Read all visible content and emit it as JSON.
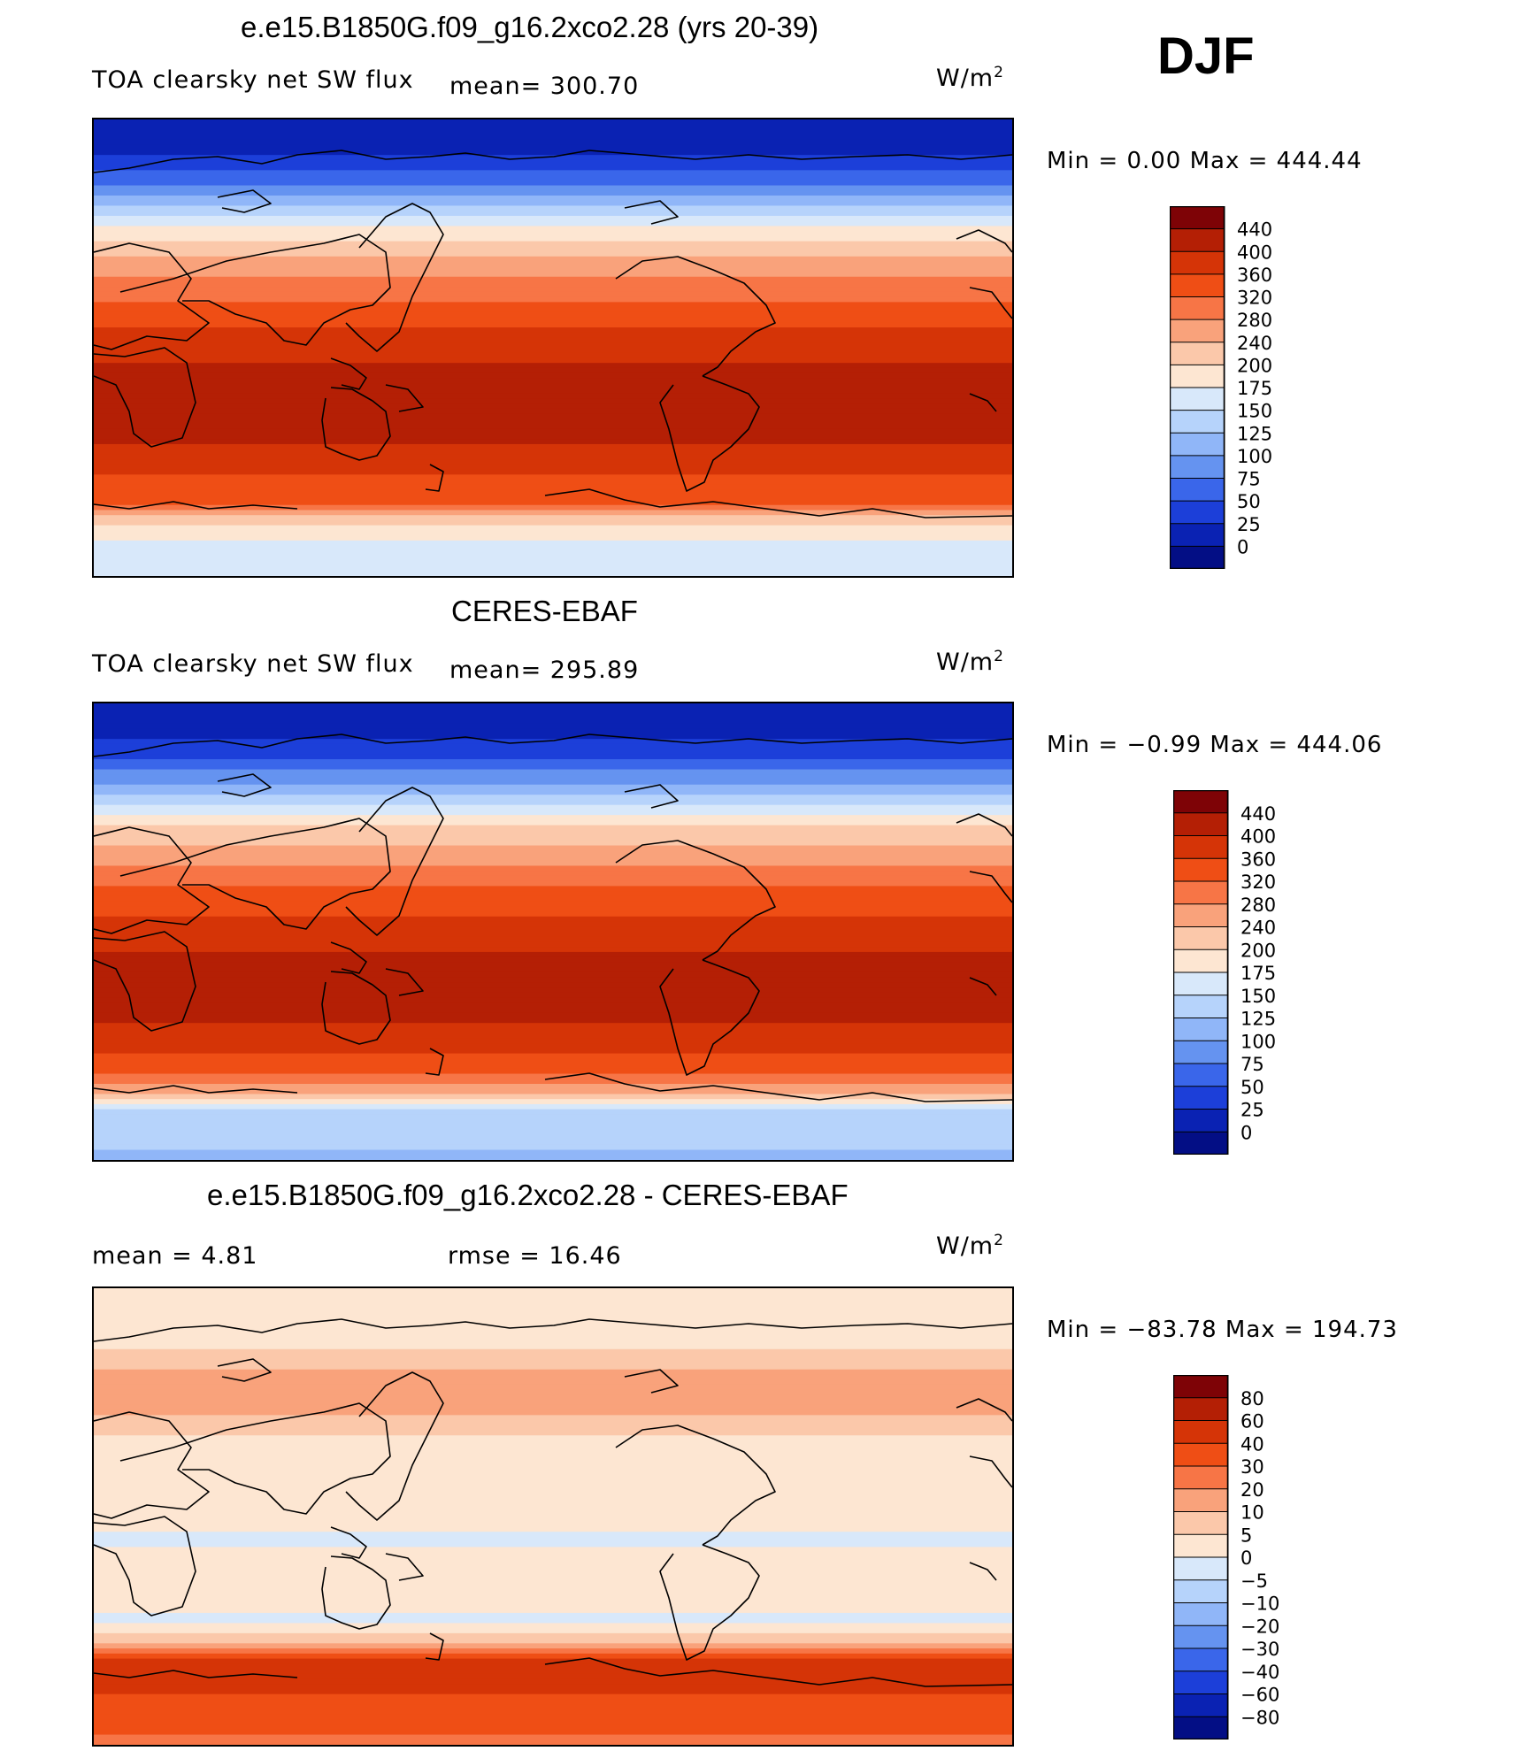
{
  "season": "DJF",
  "units_main": "W/m",
  "units_sup": "2",
  "panels": [
    {
      "title": "e.e15.B1850G.f09_g16.2xco2.28 (yrs 20-39)",
      "left_label": "TOA clearsky net SW flux",
      "center_label": "mean=  300.70",
      "minmax": "Min =    0.00  Max = 444.44"
    },
    {
      "title": "CERES-EBAF",
      "left_label": "TOA clearsky net SW flux",
      "center_label": "mean=  295.89",
      "minmax": "Min =  −0.99  Max = 444.06"
    },
    {
      "title": "e.e15.B1850G.f09_g16.2xco2.28 - CERES-EBAF",
      "left_label": "mean =    4.81",
      "center_label": "rmse =   16.46",
      "minmax": "Min = −83.78  Max = 194.73"
    }
  ],
  "chart_data": [
    {
      "type": "heatmap",
      "title": "e.e15.B1850G.f09_g16.2xco2.28 (yrs 20-39)",
      "variable": "TOA clearsky net SW flux",
      "mean": 300.7,
      "min": 0.0,
      "max": 444.44,
      "units": "W/m2",
      "zonal_profile": {
        "lat": [
          90,
          80,
          70,
          60,
          50,
          40,
          30,
          20,
          10,
          0,
          -10,
          -20,
          -30,
          -40,
          -50,
          -60,
          -70,
          -80,
          -90
        ],
        "values": [
          0,
          15,
          45,
          95,
          160,
          215,
          270,
          315,
          355,
          385,
          410,
          430,
          425,
          395,
          360,
          345,
          190,
          165,
          160
        ]
      },
      "colorbar": {
        "levels": [
          "440",
          "400",
          "360",
          "320",
          "280",
          "240",
          "200",
          "175",
          "150",
          "125",
          "100",
          "75",
          "50",
          "25",
          "0"
        ],
        "colors": [
          "#7e0306",
          "#b41f05",
          "#d53407",
          "#ef4e15",
          "#f77546",
          "#f9a27b",
          "#fbc8aa",
          "#fde6d2",
          "#d8e8fa",
          "#b6d3fb",
          "#90b6f8",
          "#6593f0",
          "#3a66ea",
          "#1c3fd9",
          "#0a22b3",
          "#030e85"
        ]
      }
    },
    {
      "type": "heatmap",
      "title": "CERES-EBAF",
      "variable": "TOA clearsky net SW flux",
      "mean": 295.89,
      "min": -0.99,
      "max": 444.06,
      "units": "W/m2",
      "zonal_profile": {
        "lat": [
          90,
          80,
          70,
          60,
          50,
          40,
          30,
          20,
          10,
          0,
          -10,
          -20,
          -30,
          -40,
          -50,
          -60,
          -70,
          -80,
          -90
        ],
        "values": [
          0,
          10,
          40,
          90,
          155,
          210,
          265,
          310,
          350,
          380,
          405,
          428,
          420,
          390,
          350,
          290,
          150,
          130,
          120
        ]
      },
      "colorbar": {
        "levels": [
          "440",
          "400",
          "360",
          "320",
          "280",
          "240",
          "200",
          "175",
          "150",
          "125",
          "100",
          "75",
          "50",
          "25",
          "0"
        ],
        "colors": [
          "#7e0306",
          "#b41f05",
          "#d53407",
          "#ef4e15",
          "#f77546",
          "#f9a27b",
          "#fbc8aa",
          "#fde6d2",
          "#d8e8fa",
          "#b6d3fb",
          "#90b6f8",
          "#6593f0",
          "#3a66ea",
          "#1c3fd9",
          "#0a22b3",
          "#030e85"
        ]
      }
    },
    {
      "type": "heatmap",
      "title": "e.e15.B1850G.f09_g16.2xco2.28 - CERES-EBAF",
      "variable": "difference",
      "mean": 4.81,
      "rmse": 16.46,
      "min": -83.78,
      "max": 194.73,
      "units": "W/m2",
      "zonal_profile": {
        "lat": [
          90,
          80,
          70,
          60,
          50,
          40,
          30,
          20,
          10,
          0,
          -10,
          -20,
          -30,
          -40,
          -50,
          -60,
          -70,
          -80,
          -90
        ],
        "values": [
          0,
          0,
          3,
          8,
          15,
          10,
          3,
          2,
          1,
          2,
          -1,
          3,
          5,
          -1,
          8,
          55,
          40,
          32,
          28
        ]
      },
      "colorbar": {
        "levels": [
          "80",
          "60",
          "40",
          "30",
          "20",
          "10",
          "5",
          "0",
          "−5",
          "−10",
          "−20",
          "−30",
          "−40",
          "−60",
          "−80"
        ],
        "colors": [
          "#7e0306",
          "#b41f05",
          "#d53407",
          "#ef4e15",
          "#f77546",
          "#f9a27b",
          "#fbc8aa",
          "#fde6d2",
          "#d8e8fa",
          "#b6d3fb",
          "#90b6f8",
          "#6593f0",
          "#3a66ea",
          "#1c3fd9",
          "#0a22b3",
          "#030e85"
        ]
      }
    }
  ]
}
